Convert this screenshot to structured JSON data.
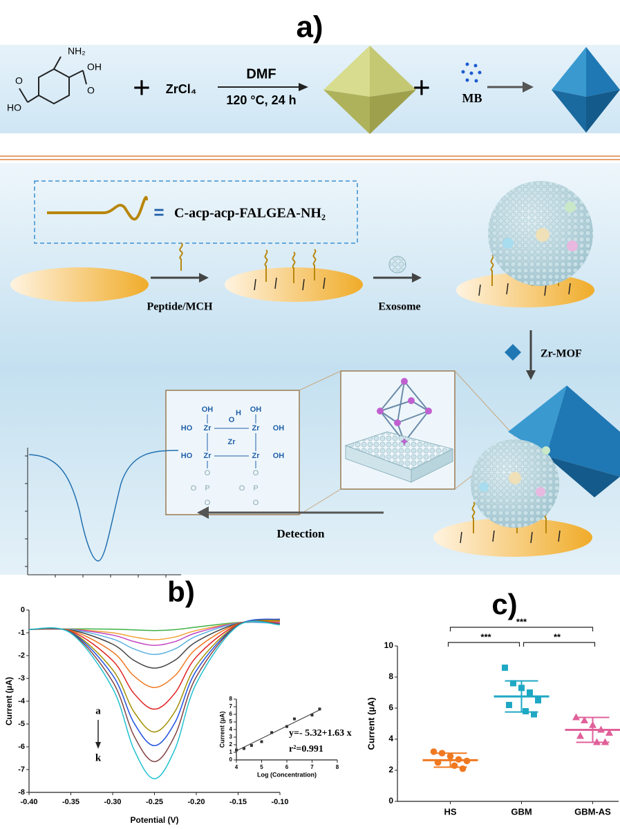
{
  "scheme": {
    "title": "a)",
    "reagent_labels": [
      "NH₂",
      "OH",
      "HO",
      "O"
    ],
    "plus": "+",
    "metal_salt": "ZrCl₄",
    "solvent": "DMF",
    "condition": "120 °C, 24 h",
    "dye": "MB",
    "equals": "=",
    "peptide": "C-acp-acp-FALGEA-NH₂",
    "step1": "Peptide/MCH",
    "step2": "Exosome",
    "step3": "Zr-MOF",
    "step4": "Detection",
    "cluster_labels": [
      "OH",
      "Zr",
      "HO",
      "O",
      "H",
      "P"
    ]
  },
  "chart_data": [
    {
      "type": "line",
      "title": "b)",
      "xlabel": "Potential (V)",
      "ylabel": "Current (µA)",
      "x": [
        -0.4,
        -0.35,
        -0.3,
        -0.275,
        -0.25,
        -0.225,
        -0.2,
        -0.15,
        -0.1
      ],
      "series": [
        {
          "color": "#3cb043",
          "values": [
            -0.85,
            -0.83,
            -0.84,
            -0.87,
            -0.9,
            -0.86,
            -0.75,
            -0.55,
            -0.5
          ]
        },
        {
          "color": "#f0a030",
          "values": [
            -0.85,
            -0.85,
            -1.0,
            -1.18,
            -1.3,
            -1.18,
            -0.9,
            -0.56,
            -0.4
          ]
        },
        {
          "color": "#c040c0",
          "values": [
            -0.85,
            -0.85,
            -1.1,
            -1.38,
            -1.55,
            -1.38,
            -1.0,
            -0.57,
            -0.55
          ]
        },
        {
          "color": "#5ab0e0",
          "values": [
            -0.85,
            -0.86,
            -1.27,
            -1.7,
            -1.95,
            -1.7,
            -1.15,
            -0.58,
            -0.6
          ]
        },
        {
          "color": "#404040",
          "values": [
            -0.85,
            -0.88,
            -1.5,
            -2.2,
            -2.55,
            -2.19,
            -1.39,
            -0.59,
            -0.45
          ]
        },
        {
          "color": "#f07820",
          "values": [
            -0.85,
            -0.9,
            -1.84,
            -2.88,
            -3.4,
            -2.86,
            -1.7,
            -0.61,
            -0.5
          ]
        },
        {
          "color": "#e02020",
          "values": [
            -0.85,
            -0.93,
            -2.22,
            -3.64,
            -4.35,
            -3.62,
            -2.06,
            -0.63,
            -0.4
          ]
        },
        {
          "color": "#a09000",
          "values": [
            -0.85,
            -0.96,
            -2.62,
            -4.44,
            -5.35,
            -4.42,
            -2.43,
            -0.65,
            -0.45
          ]
        },
        {
          "color": "#2050e0",
          "values": [
            -0.85,
            -0.98,
            -2.86,
            -4.92,
            -5.95,
            -4.9,
            -2.66,
            -0.66,
            -0.4
          ]
        },
        {
          "color": "#804040",
          "values": [
            -0.85,
            -1.0,
            -3.14,
            -5.48,
            -6.65,
            -5.46,
            -2.93,
            -0.67,
            -0.6
          ]
        },
        {
          "color": "#20c0d0",
          "values": [
            -0.85,
            -1.02,
            -3.44,
            -6.08,
            -7.4,
            -6.06,
            -3.22,
            -0.69,
            -0.65
          ]
        }
      ],
      "annotations": [
        "a",
        "k"
      ],
      "xlim": [
        -0.4,
        -0.1
      ],
      "xticks": [
        {
          "value": -0.4,
          "label": "-0.40"
        },
        -0.35,
        {
          "value": -0.3,
          "label": "-0.30"
        },
        -0.25,
        {
          "value": -0.2,
          "label": "-0.20"
        },
        -0.15,
        {
          "value": -0.1,
          "label": "-0.10"
        }
      ],
      "ylim": [
        -8,
        0
      ],
      "yticks": [
        0,
        -1,
        -2,
        -3,
        -4,
        -5,
        -6,
        -7,
        -8
      ]
    },
    {
      "type": "scatter",
      "xlabel": "Log (Concentration)",
      "ylabel": "Current (µA)",
      "x": [
        4,
        4.3,
        4.6,
        5,
        5.4,
        6,
        6.3,
        7,
        7.3
      ],
      "values": [
        1.3,
        1.5,
        1.9,
        2.4,
        3.6,
        4.4,
        5.4,
        5.9,
        6.7
      ],
      "color": "#333333",
      "fit": {
        "x": [
          4,
          7.3
        ],
        "values": [
          1.2,
          6.58
        ]
      },
      "annotations": [
        "y=- 5.32+1.63 x",
        "r²=0.991"
      ],
      "xlim": [
        4,
        8
      ],
      "xticks": [
        4,
        5,
        6,
        7,
        8
      ],
      "ylim": [
        0,
        8
      ],
      "yticks": [
        0,
        1,
        2,
        3,
        4,
        5,
        6,
        7,
        8
      ]
    },
    {
      "type": "dot",
      "title": "c)",
      "ylabel": "Current (µA)",
      "categories": [
        "HS",
        "GBM",
        "GBM-AS"
      ],
      "groups": [
        {
          "color": "#f07820",
          "marker": "circle",
          "values": [
            3.2,
            3.1,
            2.9,
            2.7,
            2.6,
            2.5,
            2.3,
            2.1
          ],
          "mean": 2.65,
          "sd": 0.45
        },
        {
          "color": "#1fa8c4",
          "marker": "square",
          "values": [
            8.6,
            7.6,
            7.3,
            7.0,
            6.5,
            6.2,
            5.8,
            5.6
          ],
          "mean": 6.75,
          "sd": 1.0
        },
        {
          "color": "#e0609a",
          "marker": "triangle",
          "values": [
            5.4,
            5.2,
            4.9,
            4.6,
            4.4,
            4.2,
            3.8,
            3.8
          ],
          "mean": 4.6,
          "sd": 0.8
        }
      ],
      "significance": [
        {
          "between": [
            "HS",
            "GBM-AS"
          ],
          "label": "***"
        },
        {
          "between": [
            "HS",
            "GBM"
          ],
          "label": "***"
        },
        {
          "between": [
            "GBM",
            "GBM-AS"
          ],
          "label": "**"
        }
      ],
      "ylim": [
        0,
        10
      ],
      "yticks": [
        0,
        2,
        4,
        6,
        8,
        10
      ]
    }
  ]
}
